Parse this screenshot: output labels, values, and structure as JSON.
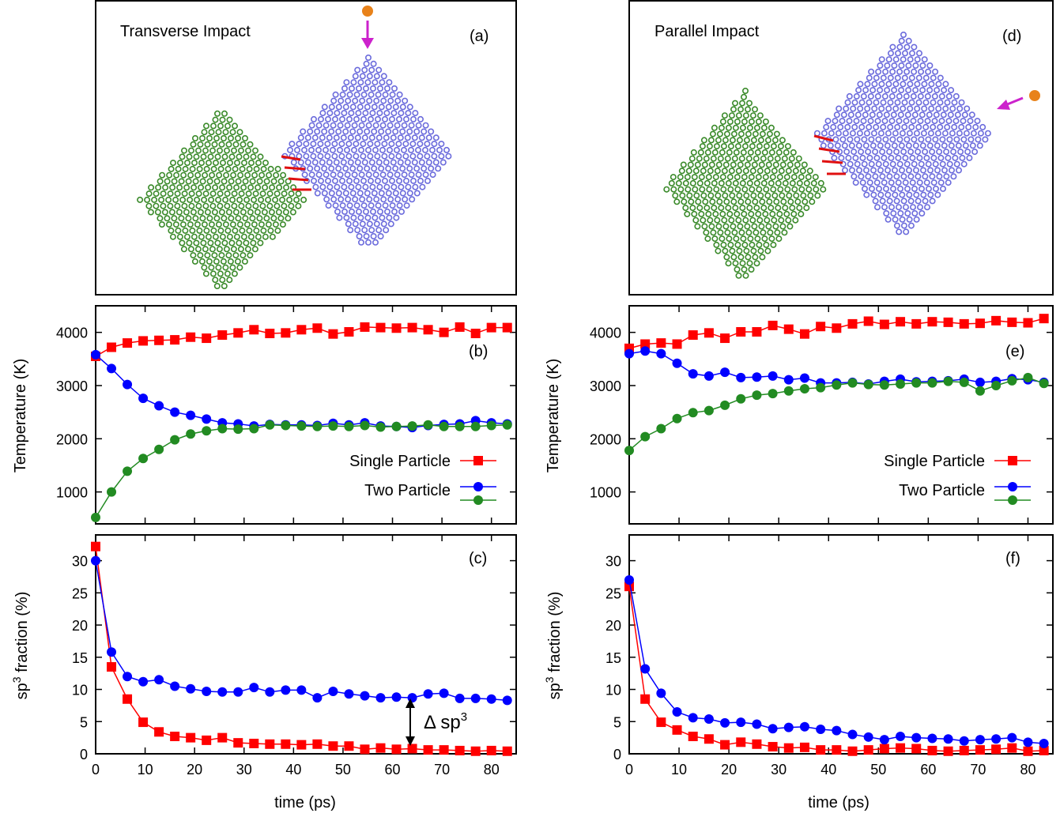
{
  "colors": {
    "single": "#ff0000",
    "two_particle_a": "#0000ff",
    "two_particle_b": "#228b22",
    "particle_green": "#3a8a2a",
    "particle_blue": "#6b6bdc",
    "bond_red": "#e01010",
    "projectile": "#e8821a",
    "arrow": "#cc22cc"
  },
  "panels": {
    "a": {
      "title": "Transverse Impact",
      "tag": "(a)"
    },
    "d": {
      "title": "Parallel Impact",
      "tag": "(d)"
    }
  },
  "axis_labels": {
    "temperature": "Temperature (K)",
    "sp3_prefix": "sp",
    "sp3_sup": "3",
    "sp3_suffix": " fraction (%)",
    "time": "time (ps)"
  },
  "legend": {
    "single": "Single Particle",
    "two": "Two Particle"
  },
  "annotation": {
    "delta": "Δ sp",
    "sup": "3"
  },
  "chart_data": [
    {
      "id": "b",
      "tag": "(b)",
      "type": "line",
      "xlim": [
        0,
        85
      ],
      "ylim": [
        400,
        4500
      ],
      "xticks": [
        0,
        10,
        20,
        30,
        40,
        50,
        60,
        70,
        80
      ],
      "yticks": [
        1000,
        2000,
        3000,
        4000
      ],
      "xlabel": "",
      "ylabel": "Temperature (K)",
      "x": [
        0,
        3.2,
        6.4,
        9.6,
        12.8,
        16,
        19.2,
        22.4,
        25.6,
        28.8,
        32,
        35.2,
        38.4,
        41.6,
        44.8,
        48,
        51.2,
        54.4,
        57.6,
        60.8,
        64,
        67.2,
        70.4,
        73.6,
        76.8,
        80,
        83.2
      ],
      "series": [
        {
          "name": "Single Particle",
          "marker": "square",
          "color": "#ff0000",
          "values": [
            3550,
            3720,
            3800,
            3840,
            3850,
            3860,
            3910,
            3890,
            3950,
            3990,
            4050,
            3980,
            3990,
            4050,
            4080,
            3970,
            4010,
            4100,
            4090,
            4080,
            4090,
            4050,
            4000,
            4100,
            3980,
            4090,
            4090
          ]
        },
        {
          "name": "Two Particle",
          "marker": "circle",
          "color": "#0000ff",
          "values": [
            3580,
            3320,
            3020,
            2760,
            2620,
            2500,
            2440,
            2370,
            2300,
            2280,
            2240,
            2270,
            2260,
            2260,
            2250,
            2290,
            2260,
            2300,
            2240,
            2230,
            2210,
            2250,
            2270,
            2280,
            2340,
            2300,
            2280
          ]
        },
        {
          "marker": "circle",
          "color": "#228b22",
          "values": [
            520,
            1000,
            1390,
            1630,
            1800,
            1980,
            2090,
            2150,
            2190,
            2180,
            2190,
            2260,
            2250,
            2240,
            2230,
            2240,
            2230,
            2250,
            2220,
            2230,
            2240,
            2260,
            2230,
            2230,
            2230,
            2250,
            2260
          ]
        }
      ]
    },
    {
      "id": "e",
      "tag": "(e)",
      "type": "line",
      "xlim": [
        0,
        85
      ],
      "ylim": [
        400,
        4500
      ],
      "xticks": [
        0,
        10,
        20,
        30,
        40,
        50,
        60,
        70,
        80
      ],
      "yticks": [
        1000,
        2000,
        3000,
        4000
      ],
      "xlabel": "",
      "ylabel": "Temperature (K)",
      "x": [
        0,
        3.2,
        6.4,
        9.6,
        12.8,
        16,
        19.2,
        22.4,
        25.6,
        28.8,
        32,
        35.2,
        38.4,
        41.6,
        44.8,
        48,
        51.2,
        54.4,
        57.6,
        60.8,
        64,
        67.2,
        70.4,
        73.6,
        76.8,
        80,
        83.2
      ],
      "series": [
        {
          "name": "Single Particle",
          "marker": "square",
          "color": "#ff0000",
          "values": [
            3700,
            3780,
            3800,
            3780,
            3950,
            3990,
            3890,
            4010,
            4010,
            4130,
            4060,
            3970,
            4110,
            4080,
            4160,
            4210,
            4150,
            4200,
            4160,
            4200,
            4190,
            4160,
            4170,
            4220,
            4190,
            4180,
            4260
          ]
        },
        {
          "name": "Two Particle",
          "marker": "circle",
          "color": "#0000ff",
          "values": [
            3600,
            3650,
            3600,
            3420,
            3220,
            3180,
            3250,
            3150,
            3160,
            3180,
            3110,
            3140,
            3050,
            3050,
            3060,
            3030,
            3080,
            3120,
            3070,
            3080,
            3090,
            3120,
            3060,
            3080,
            3130,
            3110,
            3060
          ]
        },
        {
          "marker": "circle",
          "color": "#228b22",
          "values": [
            1780,
            2040,
            2190,
            2380,
            2490,
            2530,
            2630,
            2750,
            2820,
            2850,
            2900,
            2940,
            2960,
            3010,
            3050,
            3020,
            3010,
            3030,
            3050,
            3050,
            3080,
            3060,
            2900,
            3000,
            3090,
            3150,
            3040
          ]
        }
      ]
    },
    {
      "id": "c",
      "tag": "(c)",
      "type": "line",
      "xlim": [
        0,
        85
      ],
      "ylim": [
        0,
        34
      ],
      "xticks": [
        0,
        10,
        20,
        30,
        40,
        50,
        60,
        70,
        80
      ],
      "yticks": [
        0,
        5,
        10,
        15,
        20,
        25,
        30
      ],
      "xlabel": "time (ps)",
      "ylabel": "sp3 fraction (%)",
      "x": [
        0,
        3.2,
        6.4,
        9.6,
        12.8,
        16,
        19.2,
        22.4,
        25.6,
        28.8,
        32,
        35.2,
        38.4,
        41.6,
        44.8,
        48,
        51.2,
        54.4,
        57.6,
        60.8,
        64,
        67.2,
        70.4,
        73.6,
        76.8,
        80,
        83.2
      ],
      "series": [
        {
          "name": "Single Particle",
          "marker": "square",
          "color": "#ff0000",
          "values": [
            32.2,
            13.5,
            8.5,
            4.9,
            3.4,
            2.7,
            2.5,
            2.1,
            2.5,
            1.7,
            1.6,
            1.5,
            1.5,
            1.4,
            1.5,
            1.2,
            1.2,
            0.7,
            0.9,
            0.7,
            0.8,
            0.6,
            0.6,
            0.5,
            0.4,
            0.5,
            0.4
          ]
        },
        {
          "name": "Two Particle",
          "marker": "circle",
          "color": "#0000ff",
          "values": [
            30.0,
            15.8,
            12.0,
            11.2,
            11.5,
            10.5,
            10.1,
            9.7,
            9.6,
            9.6,
            10.3,
            9.6,
            9.9,
            9.9,
            8.7,
            9.7,
            9.3,
            9.0,
            8.7,
            8.8,
            8.7,
            9.3,
            9.4,
            8.6,
            8.6,
            8.5,
            8.3
          ]
        }
      ]
    },
    {
      "id": "f",
      "tag": "(f)",
      "type": "line",
      "xlim": [
        0,
        85
      ],
      "ylim": [
        0,
        34
      ],
      "xticks": [
        0,
        10,
        20,
        30,
        40,
        50,
        60,
        70,
        80
      ],
      "yticks": [
        0,
        5,
        10,
        15,
        20,
        25,
        30
      ],
      "xlabel": "time (ps)",
      "ylabel": "sp3 fraction (%)",
      "x": [
        0,
        3.2,
        6.4,
        9.6,
        12.8,
        16,
        19.2,
        22.4,
        25.6,
        28.8,
        32,
        35.2,
        38.4,
        41.6,
        44.8,
        48,
        51.2,
        54.4,
        57.6,
        60.8,
        64,
        67.2,
        70.4,
        73.6,
        76.8,
        80,
        83.2
      ],
      "series": [
        {
          "name": "Single Particle",
          "marker": "square",
          "color": "#ff0000",
          "values": [
            26.0,
            8.5,
            4.9,
            3.7,
            2.7,
            2.3,
            1.4,
            1.8,
            1.5,
            1.1,
            0.9,
            1.0,
            0.6,
            0.6,
            0.4,
            0.6,
            0.8,
            0.9,
            0.8,
            0.5,
            0.4,
            0.5,
            0.6,
            0.7,
            0.9,
            0.4,
            0.5
          ]
        },
        {
          "name": "Two Particle",
          "marker": "circle",
          "color": "#0000ff",
          "values": [
            27.0,
            13.2,
            9.4,
            6.5,
            5.6,
            5.4,
            4.8,
            4.9,
            4.6,
            3.9,
            4.1,
            4.2,
            3.8,
            3.6,
            3.0,
            2.6,
            2.2,
            2.7,
            2.5,
            2.4,
            2.3,
            2.0,
            2.2,
            2.3,
            2.5,
            1.8,
            1.6
          ]
        }
      ]
    }
  ]
}
